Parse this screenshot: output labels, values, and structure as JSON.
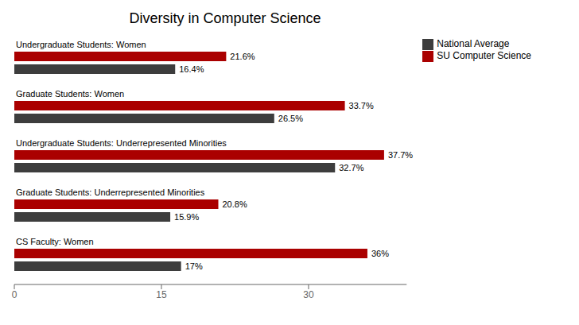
{
  "chart_data": {
    "type": "bar",
    "orientation": "horizontal",
    "title": "Diversity in Computer Science",
    "categories": [
      "Undergraduate Students: Women",
      "Graduate Students: Women",
      "Undergraduate Students: Underrepresented Minorities",
      "Graduate Students: Underrepresented Minorities",
      "CS Faculty: Women"
    ],
    "series": [
      {
        "name": "SU Computer Science",
        "color": "#AA0000",
        "values": [
          21.6,
          33.7,
          37.7,
          20.8,
          36
        ],
        "value_labels": [
          "21.6%",
          "33.7%",
          "37.7%",
          "20.8%",
          "36%"
        ]
      },
      {
        "name": "National Average",
        "color": "#3d3d3d",
        "values": [
          16.4,
          26.5,
          32.7,
          15.9,
          17
        ],
        "value_labels": [
          "16.4%",
          "26.5%",
          "32.7%",
          "15.9%",
          "17%"
        ]
      }
    ],
    "xlim": [
      0,
      40
    ],
    "xticks": [
      0,
      15,
      30
    ],
    "data_labels": true,
    "grid": false,
    "legend": "right"
  }
}
